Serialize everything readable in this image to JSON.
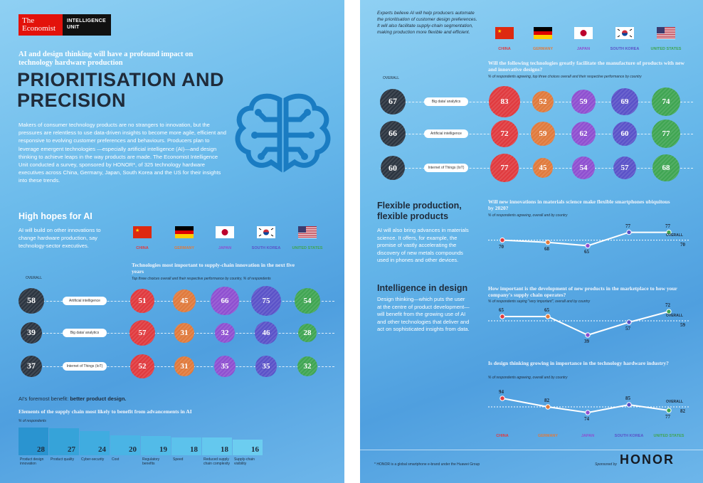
{
  "brand": {
    "economist": "The Economist",
    "eiu": "INTELLIGENCE UNIT"
  },
  "left": {
    "tagline": "AI and design thinking will have a profound impact on technology hardware production",
    "title_line1": "PRIORITISATION AND",
    "title_line2": "PRECISION",
    "intro": "Makers of consumer technology products are no strangers to innovation, but the pressures are relentless to use data-driven insights to become more agile, efficient and responsive to evolving customer preferences and behaviours. Producers plan to leverage emergent technologies —especially artificial intelligence (AI)—and design thinking to achieve leaps in the way products are made. The Economist Intelligence Unit conducted a survey, sponsored by HONOR*, of 325 technology hardware executives across China, Germany, Japan, South Korea and the US for their insights into these trends.",
    "hopes_title": "High hopes for AI",
    "hopes_text": "AI will build on other innovations to change hardware production, say technology-sector executives.",
    "chart_title": "Technologies most important to supply-chain innovation in the next five years",
    "chart_sub": "Top three choices overall and their respective performance by country, % of respondents",
    "overall_label": "OVERALL",
    "benefit_prefix": "AI's foremost benefit: ",
    "benefit_bold": "better product design.",
    "bars_title": "Elements of the supply chain most likely to benefit from advancements in AI",
    "bars_sub": "% of respondents"
  },
  "countries": [
    {
      "name": "CHINA",
      "color": "#e03a3e",
      "flag": "cn"
    },
    {
      "name": "GERMANY",
      "color": "#e07a3c",
      "flag": "de"
    },
    {
      "name": "JAPAN",
      "color": "#8e4fd0",
      "flag": "jp"
    },
    {
      "name": "SOUTH KOREA",
      "color": "#5a52c8",
      "flag": "kr"
    },
    {
      "name": "UNITED STATES",
      "color": "#3fa552",
      "flag": "us"
    }
  ],
  "chart_data": [
    {
      "type": "table",
      "title": "Technologies most important to supply-chain innovation in the next five years",
      "subtitle": "Top three choices overall and their respective performance by country, % of respondents",
      "columns": [
        "OVERALL",
        "CHINA",
        "GERMANY",
        "JAPAN",
        "SOUTH KOREA",
        "UNITED STATES"
      ],
      "rows": [
        {
          "label": "Artificial intelligence",
          "values": [
            58,
            51,
            45,
            66,
            75,
            54
          ]
        },
        {
          "label": "Big data/ analytics",
          "values": [
            39,
            57,
            31,
            32,
            46,
            28
          ]
        },
        {
          "label": "Internet of Things (IoT)",
          "values": [
            37,
            52,
            31,
            35,
            35,
            32
          ]
        }
      ]
    },
    {
      "type": "bar",
      "title": "Elements of the supply chain most likely to benefit from advancements in AI",
      "ylabel": "% of respondents",
      "categories": [
        "Product design innovation",
        "Product quality",
        "Cyber-security",
        "Cost",
        "Regulatory benefits",
        "Speed",
        "Reduced supply chain complexity",
        "Supply-chain visibility"
      ],
      "values": [
        28,
        27,
        24,
        20,
        19,
        18,
        18,
        16
      ]
    },
    {
      "type": "table",
      "title": "Will the following technologies greatly facilitate the manufacture of products with new and innovative designs?",
      "subtitle": "% of respondents agreeing, top three choices overall and their respective performance by country",
      "columns": [
        "OVERALL",
        "CHINA",
        "GERMANY",
        "JAPAN",
        "SOUTH KOREA",
        "UNITED STATES"
      ],
      "rows": [
        {
          "label": "Big data/ analytics",
          "values": [
            67,
            83,
            52,
            59,
            69,
            74
          ]
        },
        {
          "label": "Artificial intelligence",
          "values": [
            66,
            72,
            59,
            62,
            60,
            77
          ]
        },
        {
          "label": "Internet of Things (IoT)",
          "values": [
            60,
            77,
            45,
            54,
            57,
            68
          ]
        }
      ]
    },
    {
      "type": "line",
      "title": "Will new innovations in materials science make flexible smartphones ubiquitous by 2020?",
      "subtitle": "% of respondents agreeing, overall and by country",
      "categories": [
        "CHINA",
        "GERMANY",
        "JAPAN",
        "SOUTH KOREA",
        "UNITED STATES"
      ],
      "values": [
        70,
        68,
        65,
        77,
        77
      ],
      "overall": 70
    },
    {
      "type": "line",
      "title": "How important is the development of new products in the marketplace to how your company's supply chain operates?",
      "subtitle": "% of respondents saying \"very important\", overall and by country",
      "categories": [
        "CHINA",
        "GERMANY",
        "JAPAN",
        "SOUTH KOREA",
        "UNITED STATES"
      ],
      "values": [
        65,
        65,
        39,
        57,
        72
      ],
      "overall": 59
    },
    {
      "type": "line",
      "title": "Is design thinking growing in importance in the technology hardware industry?",
      "subtitle": "% of respondents agreeing, overall and by country",
      "categories": [
        "CHINA",
        "GERMANY",
        "JAPAN",
        "SOUTH KOREA",
        "UNITED STATES"
      ],
      "values": [
        94,
        82,
        74,
        85,
        77
      ],
      "overall": 82
    }
  ],
  "right": {
    "experts_text": "Experts believe AI will help producers automate the prioritisation of customer design preferences. It will also facilitate supply-chain segmentation, making production more flexible and efficient.",
    "flexible_title_1": "Flexible production,",
    "flexible_title_2": "flexible products",
    "flexible_text": "AI will also bring advances in materials science. It offers, for example, the promise of vastly accelerating the discovery of new metals compounds used in phones and other devices.",
    "design_title": "Intelligence in design",
    "design_text": "Design thinking—which puts the user at the centre of product development—will benefit from the growing use of AI and other technologies that deliver and act on sophisticated insights from data.",
    "overall_label": "OVERALL",
    "footnote": "* HONOR is a global smartphone e-brand under the Huawei Group",
    "sponsored": "Sponsored by",
    "honor": "HONOR"
  }
}
